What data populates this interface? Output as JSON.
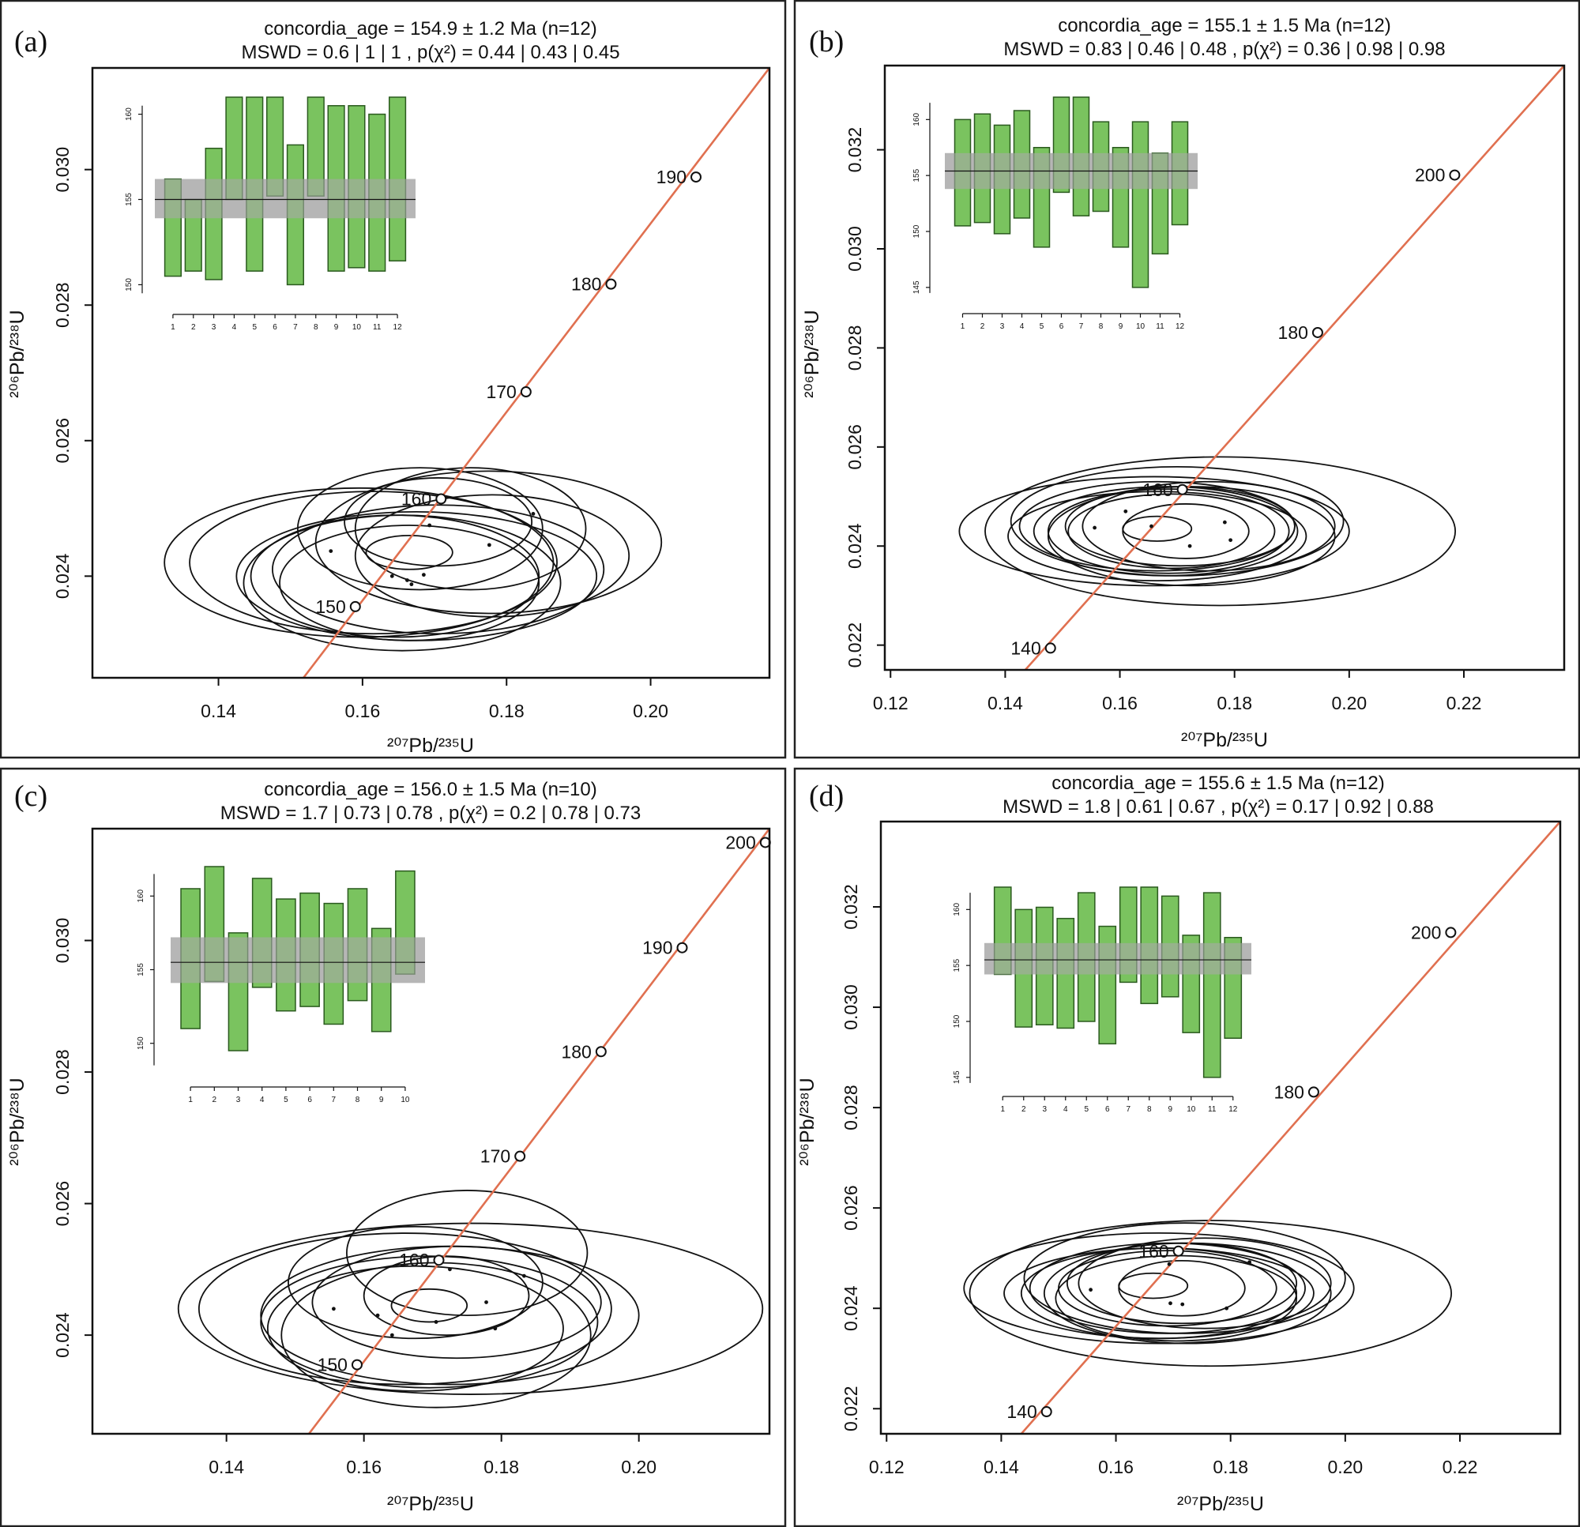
{
  "chart_data": [
    {
      "type": "scatter",
      "panel_label": "(a)",
      "title_line1": "concordia_age = 154.9 ± 1.2 Ma (n=12)",
      "title_line2": "MSWD = 0.6 | 1 | 1 , p(χ²) = 0.44 | 0.43 | 0.45",
      "xlabel": "²⁰⁷Pb/²³⁵U",
      "ylabel": "²⁰⁶Pb/²³⁸U",
      "xlim": [
        0.1225,
        0.2165
      ],
      "ylim": [
        0.0225,
        0.0315
      ],
      "xticks": [
        "0.14",
        "0.16",
        "0.18",
        "0.20"
      ],
      "yticks": [
        "0.024",
        "0.026",
        "0.028",
        "0.030"
      ],
      "concordia_segment": [
        [
          0.1518,
          0.0225
        ],
        [
          0.2165,
          0.0315
        ]
      ],
      "age_markers": [
        {
          "label": "150",
          "x": 0.159,
          "y": 0.02355
        },
        {
          "label": "160",
          "x": 0.1709,
          "y": 0.02514
        },
        {
          "label": "170",
          "x": 0.1827,
          "y": 0.02672
        },
        {
          "label": "180",
          "x": 0.1945,
          "y": 0.02831
        },
        {
          "label": "190",
          "x": 0.2063,
          "y": 0.02989
        }
      ],
      "ellipses": [
        {
          "cx": 0.1665,
          "cy": 0.02435,
          "rx": 0.006,
          "ry": 0.00025
        },
        {
          "cx": 0.168,
          "cy": 0.0247,
          "rx": 0.017,
          "ry": 0.0009
        },
        {
          "cx": 0.175,
          "cy": 0.0247,
          "rx": 0.016,
          "ry": 0.0009
        },
        {
          "cx": 0.1775,
          "cy": 0.0245,
          "rx": 0.024,
          "ry": 0.00105
        },
        {
          "cx": 0.1595,
          "cy": 0.0242,
          "rx": 0.027,
          "ry": 0.0011
        },
        {
          "cx": 0.1675,
          "cy": 0.024,
          "rx": 0.025,
          "ry": 0.00095
        },
        {
          "cx": 0.1655,
          "cy": 0.0239,
          "rx": 0.022,
          "ry": 0.001
        },
        {
          "cx": 0.1705,
          "cy": 0.0241,
          "rx": 0.023,
          "ry": 0.00095
        },
        {
          "cx": 0.1645,
          "cy": 0.024,
          "rx": 0.02,
          "ry": 0.0009
        },
        {
          "cx": 0.1705,
          "cy": 0.0248,
          "rx": 0.013,
          "ry": 0.00065
        },
        {
          "cx": 0.1665,
          "cy": 0.0239,
          "rx": 0.018,
          "ry": 0.00085
        },
        {
          "cx": 0.1615,
          "cy": 0.0242,
          "rx": 0.0255,
          "ry": 0.00105
        },
        {
          "cx": 0.178,
          "cy": 0.0243,
          "rx": 0.019,
          "ry": 0.0009
        }
      ],
      "points": [
        {
          "x": 0.1556,
          "y": 0.02437
        },
        {
          "x": 0.1641,
          "y": 0.024
        },
        {
          "x": 0.1662,
          "y": 0.02394
        },
        {
          "x": 0.1668,
          "y": 0.02388
        },
        {
          "x": 0.1685,
          "y": 0.02402
        },
        {
          "x": 0.1693,
          "y": 0.02475
        },
        {
          "x": 0.1776,
          "y": 0.02446
        },
        {
          "x": 0.1837,
          "y": 0.02492
        }
      ],
      "inset": {
        "ylim": [
          149,
          161
        ],
        "yticks": [
          "150",
          "155",
          "160"
        ],
        "xticks": [
          "1",
          "2",
          "3",
          "4",
          "5",
          "6",
          "7",
          "8",
          "9",
          "10",
          "11",
          "12"
        ],
        "mean": 155.0,
        "band": [
          153.9,
          156.2
        ],
        "bars": [
          [
            150.5,
            156.2
          ],
          [
            150.8,
            155.0
          ],
          [
            150.3,
            158.0
          ],
          [
            155.0,
            161.0
          ],
          [
            150.8,
            161.0
          ],
          [
            155.2,
            161.0
          ],
          [
            150.0,
            158.2
          ],
          [
            155.2,
            161.0
          ],
          [
            150.8,
            160.5
          ],
          [
            151.0,
            160.5
          ],
          [
            150.8,
            160.0
          ],
          [
            151.4,
            161.0
          ]
        ]
      }
    },
    {
      "type": "scatter",
      "panel_label": "(b)",
      "title_line1": "concordia_age = 155.1 ± 1.5 Ma (n=12)",
      "title_line2": "MSWD = 0.83 | 0.46 | 0.48 , p(χ²) = 0.36 | 0.98 | 0.98",
      "xlabel": "²⁰⁷Pb/²³⁵U",
      "ylabel": "²⁰⁶Pb/²³⁸U",
      "xlim": [
        0.119,
        0.2375
      ],
      "ylim": [
        0.0215,
        0.0337
      ],
      "xticks": [
        "0.12",
        "0.14",
        "0.16",
        "0.18",
        "0.20",
        "0.22"
      ],
      "yticks": [
        "0.022",
        "0.024",
        "0.026",
        "0.028",
        "0.030",
        "0.032"
      ],
      "concordia_segment": [
        [
          0.1435,
          0.0215
        ],
        [
          0.2375,
          0.0337
        ]
      ],
      "age_markers": [
        {
          "label": "140",
          "x": 0.1479,
          "y": 0.02194
        },
        {
          "label": "160",
          "x": 0.1709,
          "y": 0.02514
        },
        {
          "label": "180",
          "x": 0.1945,
          "y": 0.02831
        },
        {
          "label": "200",
          "x": 0.2184,
          "y": 0.03149
        }
      ],
      "ellipses": [
        {
          "cx": 0.1665,
          "cy": 0.02435,
          "rx": 0.006,
          "ry": 0.00025
        },
        {
          "cx": 0.1775,
          "cy": 0.0243,
          "rx": 0.041,
          "ry": 0.0015
        },
        {
          "cx": 0.166,
          "cy": 0.0243,
          "rx": 0.034,
          "ry": 0.0011
        },
        {
          "cx": 0.17,
          "cy": 0.0245,
          "rx": 0.029,
          "ry": 0.0011
        },
        {
          "cx": 0.1665,
          "cy": 0.0242,
          "rx": 0.026,
          "ry": 0.0009
        },
        {
          "cx": 0.168,
          "cy": 0.0243,
          "rx": 0.023,
          "ry": 0.0009
        },
        {
          "cx": 0.1705,
          "cy": 0.0244,
          "rx": 0.02,
          "ry": 0.0008
        },
        {
          "cx": 0.1725,
          "cy": 0.0242,
          "rx": 0.025,
          "ry": 0.001
        },
        {
          "cx": 0.169,
          "cy": 0.0243,
          "rx": 0.018,
          "ry": 0.00075
        },
        {
          "cx": 0.1665,
          "cy": 0.0244,
          "rx": 0.024,
          "ry": 0.0009
        },
        {
          "cx": 0.1685,
          "cy": 0.0243,
          "rx": 0.021,
          "ry": 0.00085
        },
        {
          "cx": 0.1755,
          "cy": 0.0244,
          "rx": 0.022,
          "ry": 0.0009
        },
        {
          "cx": 0.1715,
          "cy": 0.0243,
          "rx": 0.011,
          "ry": 0.00055
        }
      ],
      "points": [
        {
          "x": 0.1556,
          "y": 0.02437
        },
        {
          "x": 0.161,
          "y": 0.0247
        },
        {
          "x": 0.1655,
          "y": 0.0244
        },
        {
          "x": 0.1722,
          "y": 0.024
        },
        {
          "x": 0.1783,
          "y": 0.02448
        },
        {
          "x": 0.1793,
          "y": 0.02412
        }
      ],
      "inset": {
        "ylim": [
          144,
          162
        ],
        "yticks": [
          "145",
          "150",
          "155",
          "160"
        ],
        "xticks": [
          "1",
          "2",
          "3",
          "4",
          "5",
          "6",
          "7",
          "8",
          "9",
          "10",
          "11",
          "12"
        ],
        "mean": 155.4,
        "band": [
          153.8,
          157.0
        ],
        "bars": [
          [
            150.5,
            160.0
          ],
          [
            150.8,
            160.5
          ],
          [
            149.8,
            159.5
          ],
          [
            151.2,
            160.8
          ],
          [
            148.6,
            157.5
          ],
          [
            153.5,
            162.0
          ],
          [
            151.4,
            162.0
          ],
          [
            151.8,
            159.8
          ],
          [
            148.6,
            157.5
          ],
          [
            145.0,
            159.8
          ],
          [
            148.0,
            157.0
          ],
          [
            150.6,
            159.8
          ]
        ]
      }
    },
    {
      "type": "scatter",
      "panel_label": "(c)",
      "title_line1": "concordia_age = 156.0 ± 1.5 Ma (n=10)",
      "title_line2": "MSWD = 1.7 | 0.73 | 0.78 , p(χ²) = 0.2 | 0.78 | 0.73",
      "xlabel": "²⁰⁷Pb/²³⁵U",
      "ylabel": "²⁰⁶Pb/²³⁸U",
      "xlim": [
        0.1205,
        0.219
      ],
      "ylim": [
        0.0225,
        0.0317
      ],
      "xticks": [
        "0.14",
        "0.16",
        "0.18",
        "0.20"
      ],
      "yticks": [
        "0.024",
        "0.026",
        "0.028",
        "0.030"
      ],
      "concordia_segment": [
        [
          0.152,
          0.0225
        ],
        [
          0.219,
          0.0317
        ]
      ],
      "age_markers": [
        {
          "label": "150",
          "x": 0.159,
          "y": 0.02355
        },
        {
          "label": "160",
          "x": 0.1709,
          "y": 0.02514
        },
        {
          "label": "170",
          "x": 0.1827,
          "y": 0.02672
        },
        {
          "label": "180",
          "x": 0.1945,
          "y": 0.02831
        },
        {
          "label": "190",
          "x": 0.2063,
          "y": 0.02989
        },
        {
          "label": "200",
          "x": 0.2184,
          "y": 0.03149
        }
      ],
      "ellipses": [
        {
          "cx": 0.1695,
          "cy": 0.02445,
          "rx": 0.0055,
          "ry": 0.00025
        },
        {
          "cx": 0.172,
          "cy": 0.0246,
          "rx": 0.012,
          "ry": 0.0006
        },
        {
          "cx": 0.175,
          "cy": 0.02525,
          "rx": 0.0175,
          "ry": 0.00095
        },
        {
          "cx": 0.1755,
          "cy": 0.0244,
          "rx": 0.0425,
          "ry": 0.0013
        },
        {
          "cx": 0.166,
          "cy": 0.0244,
          "rx": 0.03,
          "ry": 0.00115
        },
        {
          "cx": 0.1725,
          "cy": 0.0243,
          "rx": 0.0275,
          "ry": 0.00105
        },
        {
          "cx": 0.1695,
          "cy": 0.0242,
          "rx": 0.0245,
          "ry": 0.001
        },
        {
          "cx": 0.1675,
          "cy": 0.0241,
          "rx": 0.0215,
          "ry": 0.00095
        },
        {
          "cx": 0.1735,
          "cy": 0.0245,
          "rx": 0.021,
          "ry": 0.00085
        },
        {
          "cx": 0.1675,
          "cy": 0.0248,
          "rx": 0.0185,
          "ry": 0.00085
        },
        {
          "cx": 0.1705,
          "cy": 0.024,
          "rx": 0.0225,
          "ry": 0.0011
        }
      ],
      "points": [
        {
          "x": 0.1556,
          "y": 0.0244
        },
        {
          "x": 0.162,
          "y": 0.0243
        },
        {
          "x": 0.1641,
          "y": 0.024
        },
        {
          "x": 0.1705,
          "y": 0.0242
        },
        {
          "x": 0.1725,
          "y": 0.025
        },
        {
          "x": 0.1778,
          "y": 0.0245
        },
        {
          "x": 0.1791,
          "y": 0.0241
        },
        {
          "x": 0.1833,
          "y": 0.0249
        }
      ],
      "inset": {
        "ylim": [
          148,
          162
        ],
        "yticks": [
          "150",
          "155",
          "160"
        ],
        "xticks": [
          "1",
          "2",
          "3",
          "4",
          "5",
          "6",
          "7",
          "8",
          "9",
          "10"
        ],
        "mean": 155.5,
        "band": [
          154.1,
          157.2
        ],
        "bars": [
          [
            151.0,
            160.5
          ],
          [
            154.2,
            162.0
          ],
          [
            149.5,
            157.5
          ],
          [
            153.8,
            161.2
          ],
          [
            152.2,
            159.8
          ],
          [
            152.5,
            160.2
          ],
          [
            151.3,
            159.5
          ],
          [
            152.9,
            160.5
          ],
          [
            150.8,
            157.8
          ],
          [
            154.7,
            161.7
          ]
        ]
      }
    },
    {
      "type": "scatter",
      "panel_label": "(d)",
      "title_line1": "concordia_age = 155.6 ± 1.5 Ma (n=12)",
      "title_line2": "MSWD = 1.8 | 0.61 | 0.67 , p(χ²) = 0.17 | 0.92 | 0.88",
      "xlabel": "²⁰⁷Pb/²³⁵U",
      "ylabel": "²⁰⁶Pb/²³⁸U",
      "xlim": [
        0.119,
        0.2375
      ],
      "ylim": [
        0.0215,
        0.0337
      ],
      "xticks": [
        "0.12",
        "0.14",
        "0.16",
        "0.18",
        "0.20",
        "0.22"
      ],
      "yticks": [
        "0.022",
        "0.024",
        "0.026",
        "0.028",
        "0.030",
        "0.032"
      ],
      "concordia_segment": [
        [
          0.1435,
          0.0215
        ],
        [
          0.2375,
          0.0337
        ]
      ],
      "age_markers": [
        {
          "label": "140",
          "x": 0.1479,
          "y": 0.02194
        },
        {
          "label": "160",
          "x": 0.1709,
          "y": 0.02514
        },
        {
          "label": "180",
          "x": 0.1945,
          "y": 0.02831
        },
        {
          "label": "200",
          "x": 0.2184,
          "y": 0.03149
        }
      ],
      "ellipses": [
        {
          "cx": 0.1665,
          "cy": 0.02445,
          "rx": 0.006,
          "ry": 0.00025
        },
        {
          "cx": 0.1765,
          "cy": 0.0243,
          "rx": 0.042,
          "ry": 0.00145
        },
        {
          "cx": 0.1675,
          "cy": 0.0244,
          "rx": 0.034,
          "ry": 0.0011
        },
        {
          "cx": 0.172,
          "cy": 0.0246,
          "rx": 0.028,
          "ry": 0.0011
        },
        {
          "cx": 0.1675,
          "cy": 0.0243,
          "rx": 0.027,
          "ry": 0.0009
        },
        {
          "cx": 0.169,
          "cy": 0.0244,
          "rx": 0.024,
          "ry": 0.0009
        },
        {
          "cx": 0.1715,
          "cy": 0.0245,
          "rx": 0.02,
          "ry": 0.0008
        },
        {
          "cx": 0.1725,
          "cy": 0.0243,
          "rx": 0.025,
          "ry": 0.001
        },
        {
          "cx": 0.169,
          "cy": 0.0244,
          "rx": 0.019,
          "ry": 0.00075
        },
        {
          "cx": 0.1675,
          "cy": 0.0243,
          "rx": 0.024,
          "ry": 0.0009
        },
        {
          "cx": 0.1755,
          "cy": 0.0245,
          "rx": 0.022,
          "ry": 0.0009
        },
        {
          "cx": 0.1705,
          "cy": 0.0242,
          "rx": 0.021,
          "ry": 0.00085
        },
        {
          "cx": 0.1715,
          "cy": 0.0244,
          "rx": 0.011,
          "ry": 0.00055
        }
      ],
      "points": [
        {
          "x": 0.1556,
          "y": 0.02437
        },
        {
          "x": 0.1695,
          "y": 0.0241
        },
        {
          "x": 0.1716,
          "y": 0.02408
        },
        {
          "x": 0.1793,
          "y": 0.024
        },
        {
          "x": 0.1833,
          "y": 0.02492
        },
        {
          "x": 0.1693,
          "y": 0.02488
        }
      ],
      "inset": {
        "ylim": [
          144,
          162
        ],
        "yticks": [
          "145",
          "150",
          "155",
          "160"
        ],
        "xticks": [
          "1",
          "2",
          "3",
          "4",
          "5",
          "6",
          "7",
          "8",
          "9",
          "10",
          "11",
          "12"
        ],
        "mean": 155.5,
        "band": [
          154.2,
          157.0
        ],
        "bars": [
          [
            154.2,
            162.0
          ],
          [
            149.5,
            160.0
          ],
          [
            149.7,
            160.2
          ],
          [
            149.4,
            159.2
          ],
          [
            150.0,
            161.5
          ],
          [
            148.0,
            158.5
          ],
          [
            153.5,
            162.0
          ],
          [
            151.6,
            162.0
          ],
          [
            152.2,
            161.2
          ],
          [
            149.0,
            157.7
          ],
          [
            145.0,
            161.5
          ],
          [
            148.5,
            157.5
          ]
        ]
      }
    }
  ]
}
